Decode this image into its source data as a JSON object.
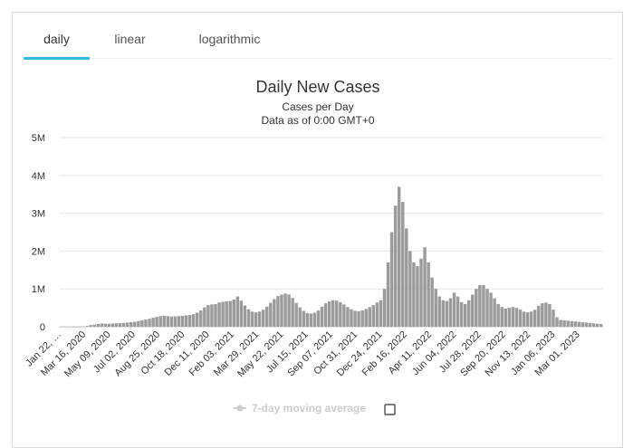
{
  "tabs": [
    {
      "label": "daily",
      "active": true
    },
    {
      "label": "linear",
      "active": false
    },
    {
      "label": "logarithmic",
      "active": false
    }
  ],
  "colors": {
    "tab_accent": "#32bbdf",
    "bar": "#9b9b9b",
    "grid": "#e6e6e6",
    "text": "#333333",
    "legend_inactive": "#cccccc"
  },
  "chart_data": {
    "type": "bar",
    "title": "Daily New Cases",
    "subtitle_lines": [
      "Cases per Day",
      "Data as of 0:00 GMT+0"
    ],
    "ylim": [
      0,
      5000000
    ],
    "ytick_labels": [
      "0",
      "1M",
      "2M",
      "3M",
      "4M",
      "5M"
    ],
    "ytick_values": [
      0,
      1000000,
      2000000,
      3000000,
      4000000,
      5000000
    ],
    "x_categories": [
      "Jan 22, 2020",
      "Mar 16, 2020",
      "May 09, 2020",
      "Jul 02, 2020",
      "Aug 25, 2020",
      "Oct 18, 2020",
      "Dec 11, 2020",
      "Feb 03, 2021",
      "Mar 29, 2021",
      "May 22, 2021",
      "Jul 15, 2021",
      "Sep 07, 2021",
      "Oct 31, 2021",
      "Dec 24, 2021",
      "Feb 16, 2022",
      "Apr 11, 2022",
      "Jun 04, 2022",
      "Jul 28, 2022",
      "Sep 20, 2022",
      "Nov 13, 2022",
      "Jan 06, 2023",
      "Mar 01, 2023"
    ],
    "x_tick_display": [
      "Jan 22, …",
      "Mar 16, 2020",
      "May 09, 2020",
      "Jul 02, 2020",
      "Aug 25, 2020",
      "Oct 18, 2020",
      "Dec 11, 2020",
      "Feb 03, 2021",
      "Mar 29, 2021",
      "May 22, 2021",
      "Jul 15, 2021",
      "Sep 07, 2021",
      "Oct 31, 2021",
      "Dec 24, 2021",
      "Feb 16, 2022",
      "Apr 11, 2022",
      "Jun 04, 2022",
      "Jul 28, 2022",
      "Sep 20, 2022",
      "Nov 13, 2022",
      "Jan 06, 2023",
      "Mar 01, 2023"
    ],
    "x_range": [
      "2020-01-22",
      "2023-04-22"
    ],
    "grid": true,
    "legend": {
      "position": "bottom",
      "items": [
        {
          "name": "7-day moving average",
          "visible": false
        }
      ]
    },
    "daily_cases_weekly_sample": {
      "start": "2020-01-22",
      "interval": "week",
      "values": [
        600,
        1800,
        3000,
        2000,
        1500,
        2500,
        5000,
        20000,
        45000,
        55000,
        75000,
        85000,
        80000,
        80000,
        85000,
        90000,
        95000,
        100000,
        110000,
        120000,
        130000,
        150000,
        170000,
        190000,
        210000,
        240000,
        260000,
        280000,
        290000,
        280000,
        270000,
        275000,
        280000,
        290000,
        300000,
        310000,
        330000,
        370000,
        430000,
        510000,
        570000,
        590000,
        600000,
        640000,
        660000,
        670000,
        680000,
        720000,
        800000,
        690000,
        560000,
        460000,
        400000,
        380000,
        400000,
        450000,
        530000,
        630000,
        730000,
        810000,
        850000,
        880000,
        850000,
        760000,
        630000,
        510000,
        420000,
        360000,
        350000,
        370000,
        430000,
        530000,
        620000,
        670000,
        700000,
        690000,
        650000,
        590000,
        520000,
        460000,
        420000,
        410000,
        430000,
        470000,
        520000,
        570000,
        640000,
        700000,
        1000000,
        1700000,
        2500000,
        3200000,
        3700000,
        3300000,
        2600000,
        2000000,
        1700000,
        1600000,
        1800000,
        2100000,
        1700000,
        1300000,
        1000000,
        800000,
        700000,
        680000,
        750000,
        900000,
        800000,
        650000,
        600000,
        700000,
        850000,
        1000000,
        1100000,
        1100000,
        1000000,
        900000,
        750000,
        600000,
        520000,
        480000,
        500000,
        520000,
        500000,
        450000,
        400000,
        380000,
        400000,
        450000,
        550000,
        620000,
        640000,
        600000,
        450000,
        250000,
        180000,
        170000,
        160000,
        150000,
        140000,
        130000,
        120000,
        110000,
        100000,
        90000,
        80000,
        70000
      ]
    }
  }
}
